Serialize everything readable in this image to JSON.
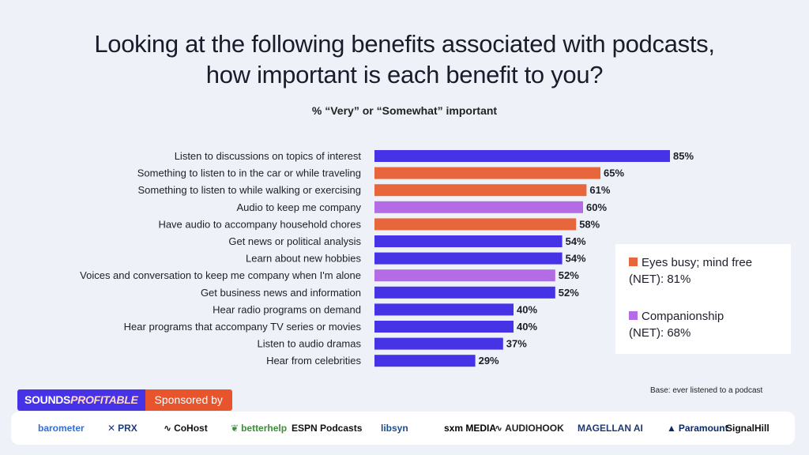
{
  "title_line1": "Looking at the following benefits associated with podcasts,",
  "title_line2": "how important is each benefit to you?",
  "subtitle": "% “Very” or “Somewhat” important",
  "chart_data": {
    "type": "bar",
    "orientation": "horizontal",
    "xlim": [
      0,
      100
    ],
    "categories": [
      "Listen to discussions on topics of interest",
      "Something to listen to in the car or while traveling",
      "Something to listen to while walking or exercising",
      "Audio to keep me company",
      "Have audio to accompany household chores",
      "Get news or political analysis",
      "Learn about new hobbies",
      "Voices and conversation to keep me company when I'm alone",
      "Get business news and information",
      "Hear radio programs on demand",
      "Hear programs that accompany TV series or movies",
      "Listen to audio dramas",
      "Hear from celebrities"
    ],
    "values": [
      85,
      65,
      61,
      60,
      58,
      54,
      54,
      52,
      52,
      40,
      40,
      37,
      29
    ],
    "value_labels": [
      "85%",
      "65%",
      "61%",
      "60%",
      "58%",
      "54%",
      "54%",
      "52%",
      "52%",
      "40%",
      "40%",
      "37%",
      "29%"
    ],
    "groups": [
      "other",
      "eyes_busy",
      "eyes_busy",
      "companionship",
      "eyes_busy",
      "other",
      "other",
      "companionship",
      "other",
      "other",
      "other",
      "other",
      "other"
    ],
    "colors": {
      "other": "#4733e6",
      "eyes_busy": "#e8663c",
      "companionship": "#b46ce6"
    },
    "legend": [
      {
        "group": "eyes_busy",
        "line1": "Eyes busy; mind free",
        "line2": "(NET): 81%"
      },
      {
        "group": "companionship",
        "line1": "Companionship",
        "line2": "(NET): 68%"
      }
    ],
    "legend_position": "right"
  },
  "base_note": "Base: ever listened to a podcast",
  "brand": {
    "sounds": "SOUNDS",
    "profitable": "PROFITABLE",
    "sponsored": "Sponsored by"
  },
  "sponsors": [
    {
      "name": "barometer",
      "color": "#2f6fd8",
      "icon": ""
    },
    {
      "name": "PRX",
      "color": "#1d3c7a",
      "icon": "prx-x-icon"
    },
    {
      "name": "CoHost",
      "color": "#111111",
      "icon": "soundwave-icon"
    },
    {
      "name": "betterhelp",
      "color": "#3c8d3a",
      "icon": "leaf-icon"
    },
    {
      "name": "ESPN Podcasts",
      "color": "#111111",
      "icon": ""
    },
    {
      "name": "libsyn",
      "color": "#1a4d8c",
      "icon": ""
    },
    {
      "name": "sxm MEDIA",
      "color": "#000000",
      "icon": ""
    },
    {
      "name": "AUDIOHOOK",
      "color": "#222222",
      "icon": "soundwave-icon"
    },
    {
      "name": "MAGELLAN AI",
      "color": "#1f3a70",
      "icon": ""
    },
    {
      "name": "Paramount",
      "color": "#0a2a66",
      "icon": "mountain-icon"
    },
    {
      "name": "SignalHill",
      "color": "#111111",
      "icon": ""
    }
  ]
}
